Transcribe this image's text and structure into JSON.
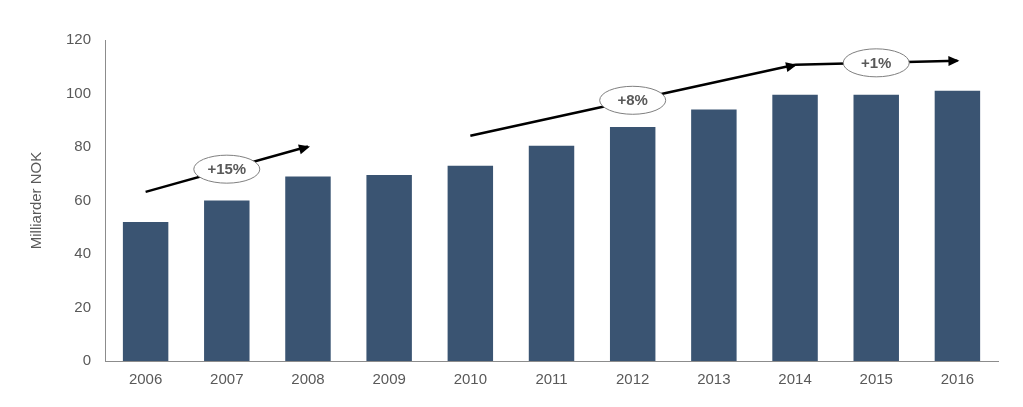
{
  "chart_data": {
    "type": "bar",
    "categories": [
      "2006",
      "2007",
      "2008",
      "2009",
      "2010",
      "2011",
      "2012",
      "2013",
      "2014",
      "2015",
      "2016"
    ],
    "values": [
      52,
      60,
      69,
      69.5,
      73,
      80.5,
      87.5,
      94,
      99.5,
      99.5,
      101
    ],
    "color": "#3a5472",
    "ylabel": "Milliarder NOK",
    "ylim": [
      0,
      120
    ],
    "yticks": [
      0,
      20,
      40,
      60,
      80,
      100,
      120
    ],
    "grid": false,
    "annotations": [
      {
        "text": "+15%",
        "from": "2006",
        "to": "2008"
      },
      {
        "text": "+8%",
        "from": "2010",
        "to": "2014"
      },
      {
        "text": "+1%",
        "from": "2014",
        "to": "2016"
      }
    ]
  }
}
